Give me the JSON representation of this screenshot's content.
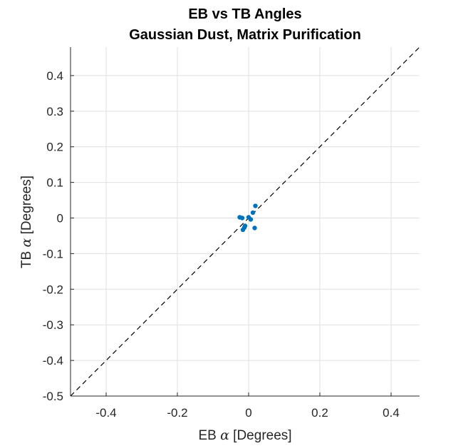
{
  "chart_data": {
    "type": "scatter",
    "title": "EB vs TB Angles",
    "subtitle": "Gaussian Dust, Matrix Purification",
    "xlabel": {
      "prefix": "EB ",
      "symbol": "α",
      "suffix": " [Degrees]"
    },
    "ylabel": {
      "prefix": "TB ",
      "symbol": "α",
      "suffix": " [Degrees]"
    },
    "xlim": [
      -0.5,
      0.48
    ],
    "ylim": [
      -0.5,
      0.48
    ],
    "xticks": [
      -0.4,
      -0.2,
      0,
      0.2,
      0.4
    ],
    "xtick_labels": [
      "-0.4",
      "-0.2",
      "0",
      "0.2",
      "0.4"
    ],
    "yticks": [
      -0.5,
      -0.4,
      -0.3,
      -0.2,
      -0.1,
      0,
      0.1,
      0.2,
      0.3,
      0.4
    ],
    "ytick_labels": [
      "-0.5",
      "-0.4",
      "-0.3",
      "-0.2",
      "-0.1",
      "0",
      "0.1",
      "0.2",
      "0.3",
      "0.4"
    ],
    "grid": true,
    "reference_line": {
      "style": "dashed",
      "color": "#000000",
      "description": "y = x"
    },
    "series": [
      {
        "color": "#0072BD",
        "points": [
          {
            "x": -0.025,
            "y": 0.002
          },
          {
            "x": -0.018,
            "y": 0.0
          },
          {
            "x": -0.016,
            "y": -0.033
          },
          {
            "x": -0.012,
            "y": -0.027
          },
          {
            "x": -0.01,
            "y": -0.022
          },
          {
            "x": 0.0,
            "y": 0.002
          },
          {
            "x": 0.006,
            "y": -0.004
          },
          {
            "x": 0.012,
            "y": 0.015
          },
          {
            "x": 0.017,
            "y": -0.028
          },
          {
            "x": 0.019,
            "y": 0.034
          }
        ]
      }
    ]
  }
}
